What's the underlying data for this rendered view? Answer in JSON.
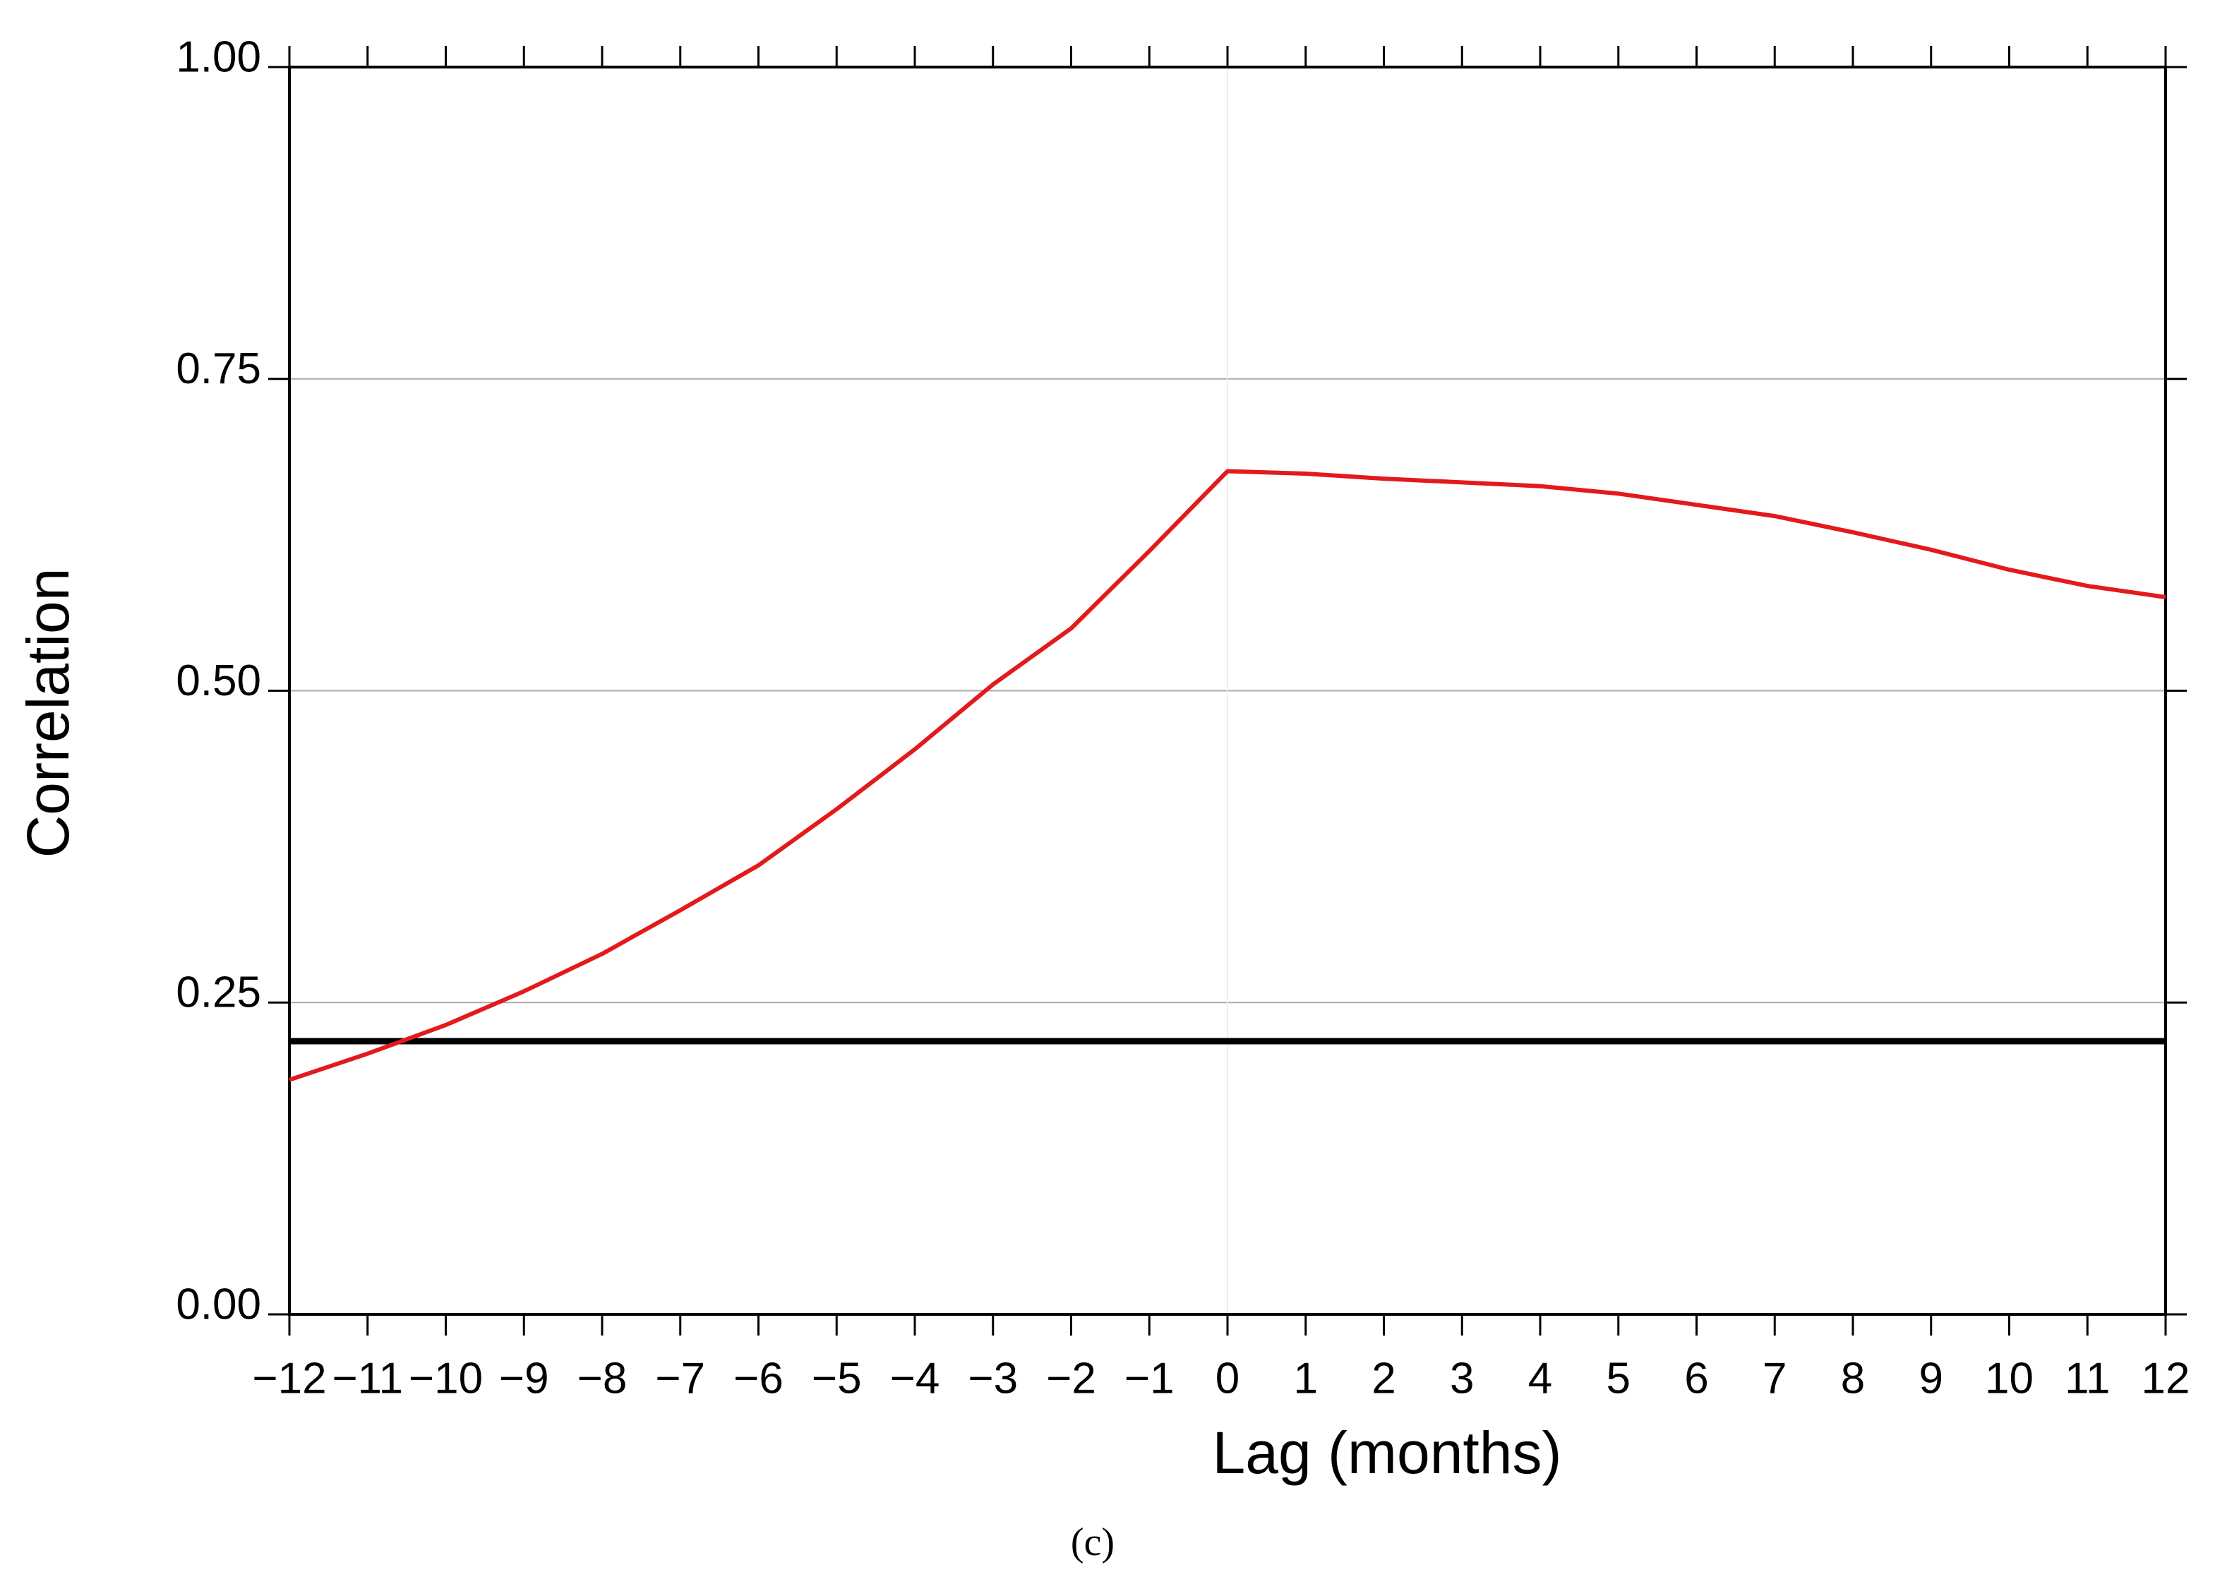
{
  "chart_data": {
    "type": "line",
    "xlabel": "Lag (months)",
    "ylabel": "Correlation",
    "caption": "(c)",
    "x": [
      -12,
      -11,
      -10,
      -9,
      -8,
      -7,
      -6,
      -5,
      -4,
      -3,
      -2,
      -1,
      0,
      1,
      2,
      3,
      4,
      5,
      6,
      7,
      8,
      9,
      10,
      11,
      12
    ],
    "series": [
      {
        "color": "#e31a1c",
        "values": [
          0.188,
          0.209,
          0.232,
          0.259,
          0.289,
          0.324,
          0.36,
          0.405,
          0.453,
          0.505,
          0.55,
          0.612,
          0.676,
          0.674,
          0.67,
          0.667,
          0.664,
          0.658,
          0.649,
          0.64,
          0.627,
          0.613,
          0.597,
          0.584,
          0.575
        ]
      }
    ],
    "reference_line": {
      "value": 0.219,
      "color": "#000000"
    },
    "xlim": [
      -12,
      12
    ],
    "xticks": [
      {
        "value": -12,
        "label": "−12"
      },
      {
        "value": -11,
        "label": "−11"
      },
      {
        "value": -10,
        "label": "−10"
      },
      {
        "value": -9,
        "label": "−9"
      },
      {
        "value": -8,
        "label": "−8"
      },
      {
        "value": -7,
        "label": "−7"
      },
      {
        "value": -6,
        "label": "−6"
      },
      {
        "value": -5,
        "label": "−5"
      },
      {
        "value": -4,
        "label": "−4"
      },
      {
        "value": -3,
        "label": "−3"
      },
      {
        "value": -2,
        "label": "−2"
      },
      {
        "value": -1,
        "label": "−1"
      },
      0,
      1,
      2,
      3,
      4,
      5,
      6,
      7,
      8,
      9,
      10,
      11,
      12
    ],
    "ylim": [
      0,
      1
    ],
    "yticks": [
      {
        "value": 0,
        "label": "0.00"
      },
      {
        "value": 0.25,
        "label": "0.25"
      },
      {
        "value": 0.5,
        "label": "0.50"
      },
      {
        "value": 0.75,
        "label": "0.75"
      },
      {
        "value": 1,
        "label": "1.00"
      }
    ],
    "grid": true
  }
}
